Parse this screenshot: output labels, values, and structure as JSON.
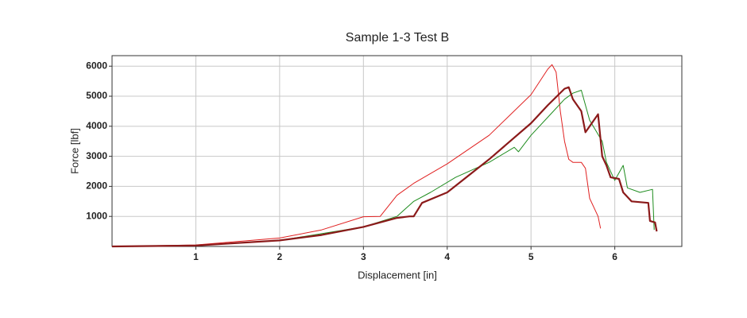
{
  "chart_data": {
    "type": "line",
    "title": "Sample 1-3 Test B",
    "x_label": "Displacement [in]",
    "y_label": "Force [lbf]",
    "xlim": [
      0,
      6.8
    ],
    "ylim": [
      0,
      6350
    ],
    "xticks": [
      1,
      2,
      3,
      4,
      5,
      6
    ],
    "yticks": [
      1000,
      2000,
      3000,
      4000,
      5000,
      6000
    ],
    "grid": true,
    "series": [
      {
        "color": "#e02020",
        "width": 1,
        "x": [
          0,
          1,
          2,
          2.5,
          3,
          3.2,
          3.4,
          3.6,
          4,
          4.5,
          5,
          5.2,
          5.25,
          5.3,
          5.35,
          5.4,
          5.45,
          5.5,
          5.6,
          5.65,
          5.7,
          5.8,
          5.83
        ],
        "values": [
          0,
          50,
          280,
          550,
          990,
          1000,
          1700,
          2100,
          2750,
          3700,
          5050,
          5900,
          6050,
          5800,
          4500,
          3500,
          2900,
          2800,
          2800,
          2600,
          1600,
          1000,
          600
        ]
      },
      {
        "color": "#1e8c1e",
        "width": 1,
        "x": [
          0,
          1,
          2,
          3,
          3.4,
          3.6,
          3.8,
          4.1,
          4.5,
          4.8,
          4.85,
          5,
          5.2,
          5.4,
          5.5,
          5.6,
          5.7,
          5.85,
          5.9,
          6.0,
          6.1,
          6.15,
          6.3,
          6.45,
          6.47
        ],
        "values": [
          0,
          30,
          200,
          650,
          1000,
          1500,
          1800,
          2300,
          2800,
          3300,
          3150,
          3700,
          4300,
          4900,
          5100,
          5200,
          4200,
          3500,
          2800,
          2200,
          2700,
          1950,
          1800,
          1900,
          550
        ]
      },
      {
        "color": "#8b1a1a",
        "width": 2.2,
        "x": [
          0,
          1,
          2,
          2.5,
          3,
          3.4,
          3.55,
          3.6,
          3.7,
          4,
          4.5,
          5,
          5.2,
          5.4,
          5.45,
          5.5,
          5.6,
          5.65,
          5.75,
          5.8,
          5.85,
          5.9,
          5.95,
          6.05,
          6.1,
          6.2,
          6.4,
          6.42,
          6.48,
          6.5
        ],
        "values": [
          0,
          30,
          200,
          380,
          650,
          950,
          1000,
          1000,
          1450,
          1800,
          2900,
          4100,
          4700,
          5250,
          5300,
          4900,
          4500,
          3800,
          4200,
          4400,
          3000,
          2700,
          2300,
          2250,
          1800,
          1500,
          1450,
          850,
          800,
          500
        ]
      }
    ]
  }
}
